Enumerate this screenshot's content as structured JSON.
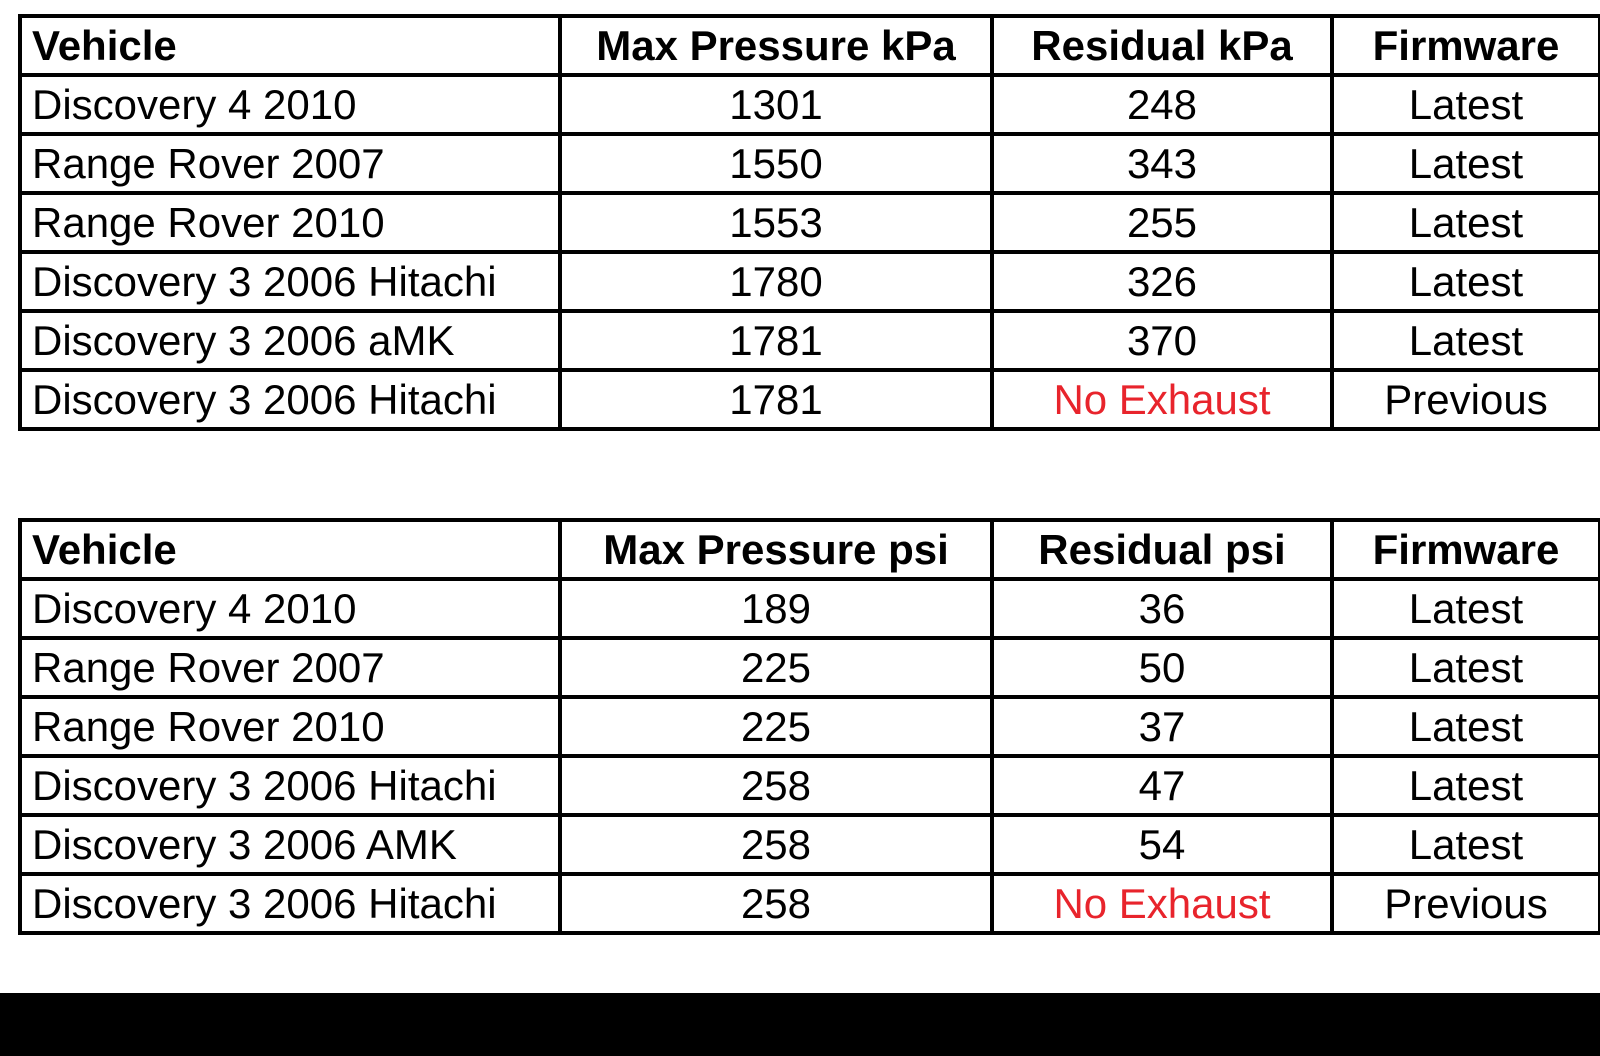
{
  "tables": {
    "kpa": {
      "headers": {
        "vehicle": "Vehicle",
        "max_pressure": "Max Pressure kPa",
        "residual": "Residual kPa",
        "firmware": "Firmware"
      },
      "rows": [
        {
          "vehicle": "Discovery 4 2010",
          "max_pressure": "1301",
          "residual": "248",
          "firmware": "Latest"
        },
        {
          "vehicle": "Range Rover 2007",
          "max_pressure": "1550",
          "residual": "343",
          "firmware": "Latest"
        },
        {
          "vehicle": "Range Rover 2010",
          "max_pressure": "1553",
          "residual": "255",
          "firmware": "Latest"
        },
        {
          "vehicle": "Discovery 3 2006 Hitachi",
          "max_pressure": "1780",
          "residual": "326",
          "firmware": "Latest"
        },
        {
          "vehicle": "Discovery 3 2006 aMK",
          "max_pressure": "1781",
          "residual": "370",
          "firmware": "Latest"
        },
        {
          "vehicle": "Discovery 3 2006 Hitachi",
          "max_pressure": "1781",
          "residual": "No Exhaust",
          "firmware": "Previous"
        }
      ]
    },
    "psi": {
      "headers": {
        "vehicle": "Vehicle",
        "max_pressure": "Max Pressure psi",
        "residual": "Residual psi",
        "firmware": "Firmware"
      },
      "rows": [
        {
          "vehicle": "Discovery 4 2010",
          "max_pressure": "189",
          "residual": "36",
          "firmware": "Latest"
        },
        {
          "vehicle": "Range Rover 2007",
          "max_pressure": "225",
          "residual": "50",
          "firmware": "Latest"
        },
        {
          "vehicle": "Range Rover 2010",
          "max_pressure": "225",
          "residual": "37",
          "firmware": "Latest"
        },
        {
          "vehicle": "Discovery 3 2006 Hitachi",
          "max_pressure": "258",
          "residual": "47",
          "firmware": "Latest"
        },
        {
          "vehicle": "Discovery 3 2006 AMK",
          "max_pressure": "258",
          "residual": "54",
          "firmware": "Latest"
        },
        {
          "vehicle": "Discovery 3 2006 Hitachi",
          "max_pressure": "258",
          "residual": "No Exhaust",
          "firmware": "Previous"
        }
      ]
    }
  },
  "colors": {
    "no_exhaust_text": "#e8242c",
    "border": "#000000",
    "bottom_bar": "#000000"
  }
}
